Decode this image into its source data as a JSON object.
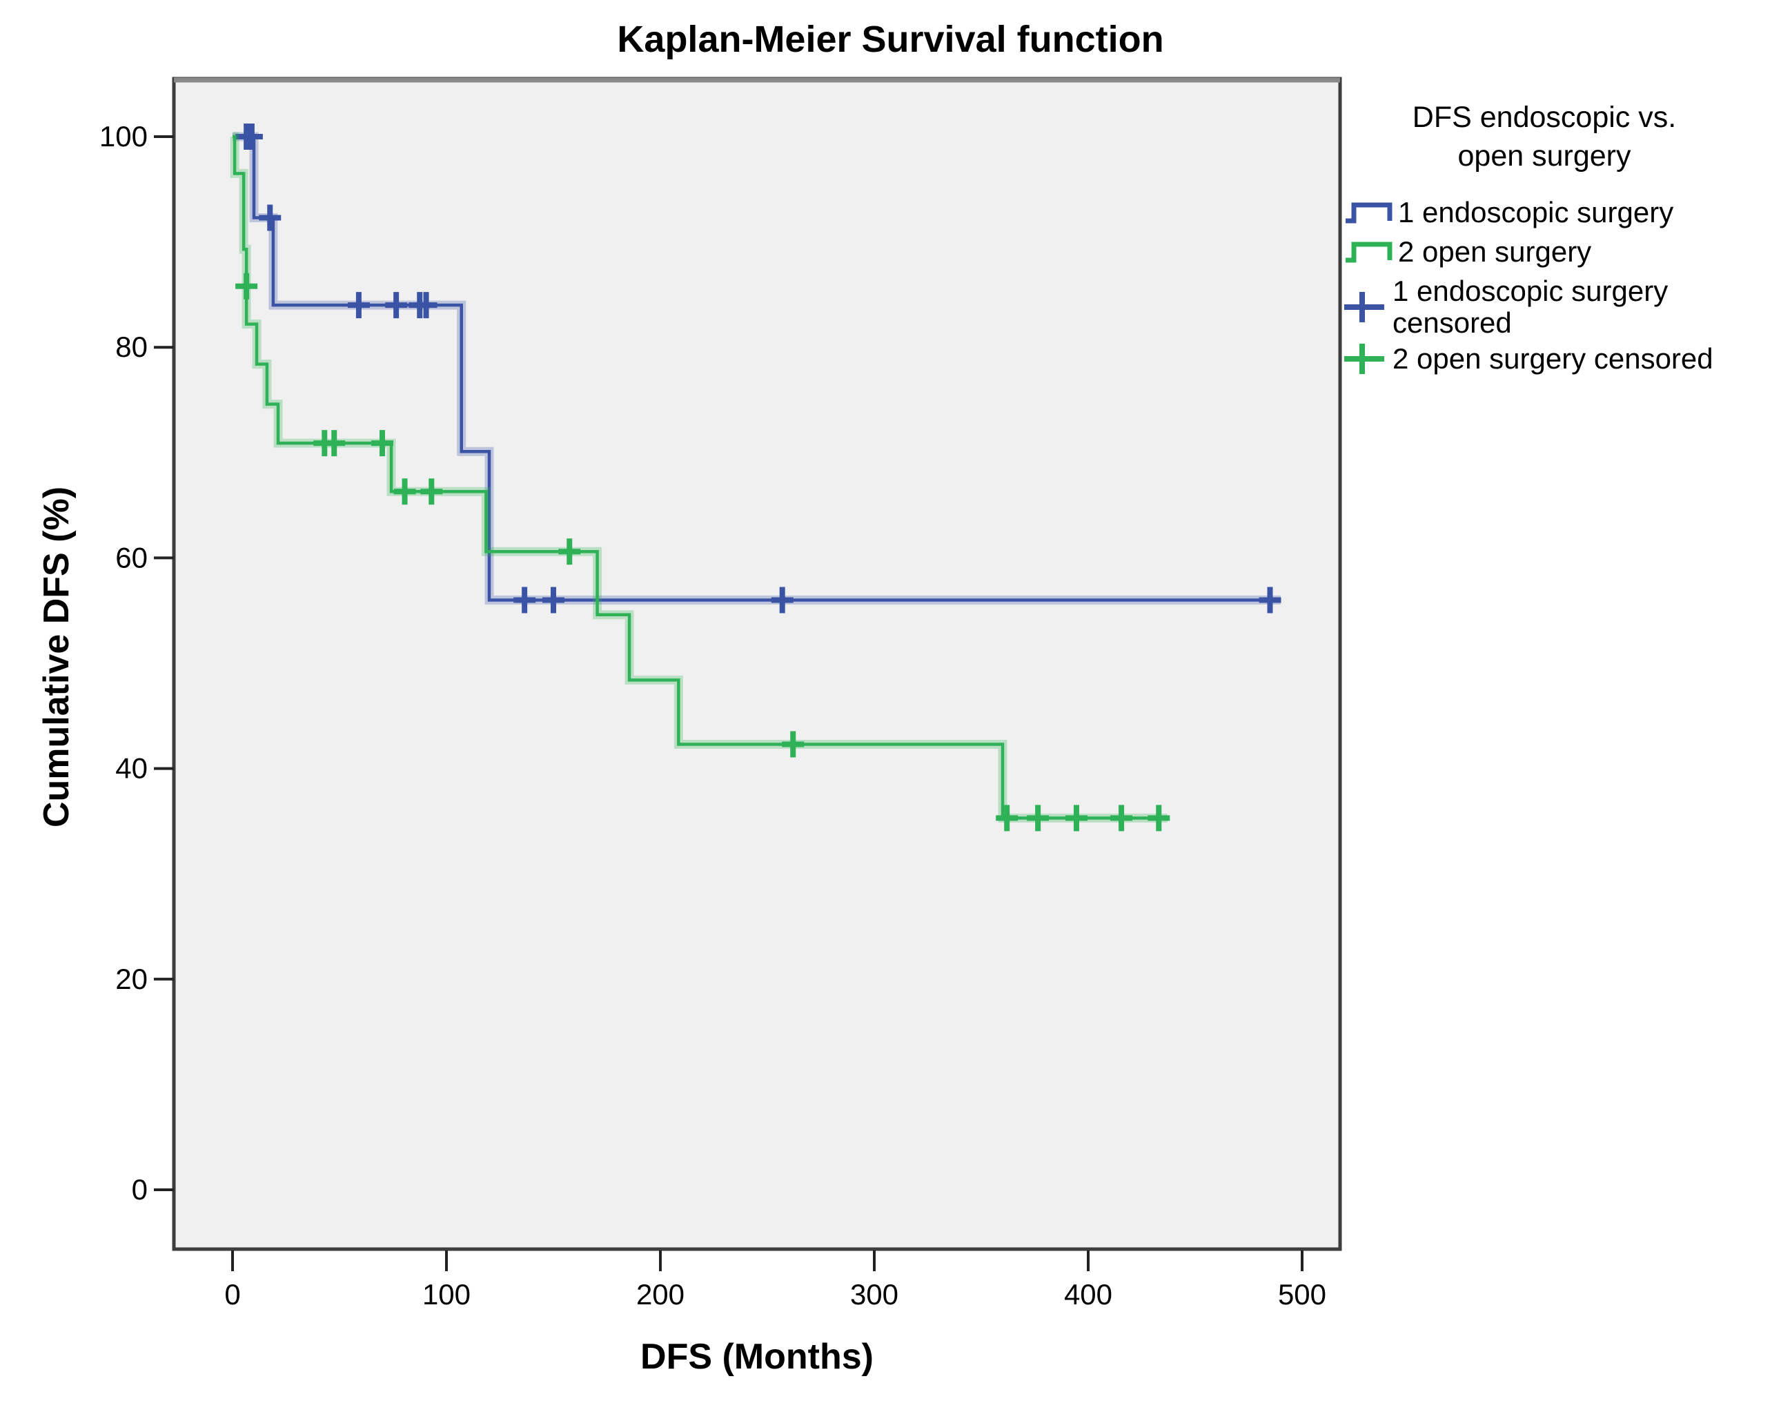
{
  "title": "Kaplan-Meier Survival function",
  "x_axis": {
    "label": "DFS (Months)",
    "ticks": [
      0,
      100,
      200,
      300,
      400,
      500
    ]
  },
  "y_axis": {
    "label": "Cumulative DFS (%)",
    "ticks": [
      0,
      20,
      40,
      60,
      80,
      100
    ]
  },
  "legend": {
    "title_line1": "DFS endoscopic vs.",
    "title_line2": "open surgery",
    "items": [
      {
        "label_lines": [
          "1 endoscopic surgery"
        ],
        "glyph": "step-line",
        "color": "#3b53a5"
      },
      {
        "label_lines": [
          "2 open surgery"
        ],
        "glyph": "step-line",
        "color": "#2fb257"
      },
      {
        "label_lines": [
          "1 endoscopic surgery",
          "censored"
        ],
        "glyph": "plus",
        "color": "#3b53a5"
      },
      {
        "label_lines": [
          "2 open surgery censored"
        ],
        "glyph": "plus",
        "color": "#2fb257"
      }
    ]
  },
  "colors": {
    "endoscopic": "#3b53a5",
    "open": "#2fb257",
    "plot_background": "#f0f0f0",
    "frame": "#3d3d3d",
    "frame_top_band": "#8a8a8a",
    "text": "#000000"
  },
  "chart_data": {
    "type": "line",
    "subtype": "kaplan-meier-step",
    "title": "Kaplan-Meier Survival function",
    "xlabel": "DFS (Months)",
    "ylabel": "Cumulative DFS (%)",
    "xlim": [
      -27,
      518
    ],
    "ylim": [
      -7,
      106
    ],
    "x_ticks": [
      0,
      100,
      200,
      300,
      400,
      500
    ],
    "y_ticks": [
      0,
      20,
      40,
      60,
      80,
      100
    ],
    "grid": false,
    "legend_position": "right",
    "series": [
      {
        "name": "1 endoscopic surgery",
        "color": "#3b53a5",
        "end_time": 490,
        "steps": [
          [
            0,
            100
          ],
          [
            10,
            92.3
          ],
          [
            19,
            84.0
          ],
          [
            107,
            70.1
          ],
          [
            120,
            56.0
          ]
        ],
        "censored": [
          [
            6.5,
            100
          ],
          [
            9,
            100
          ],
          [
            17.5,
            92.3
          ],
          [
            59,
            84.0
          ],
          [
            76.5,
            84.0
          ],
          [
            87.5,
            84.0
          ],
          [
            90.5,
            84.0
          ],
          [
            136.5,
            56.0
          ],
          [
            150,
            56.0
          ],
          [
            257,
            56.0
          ],
          [
            485,
            56.0
          ]
        ]
      },
      {
        "name": "2 open surgery",
        "color": "#2fb257",
        "end_time": 437,
        "steps": [
          [
            0,
            100
          ],
          [
            1,
            96.5
          ],
          [
            5.2,
            89.3
          ],
          [
            6.5,
            82.2
          ],
          [
            11.3,
            78.4
          ],
          [
            16.1,
            74.6
          ],
          [
            21.3,
            70.9
          ],
          [
            74.2,
            66.3
          ],
          [
            118.5,
            60.6
          ],
          [
            170.5,
            54.6
          ],
          [
            185.5,
            48.4
          ],
          [
            208.5,
            42.3
          ],
          [
            360,
            35.3
          ]
        ],
        "censored": [
          [
            6.5,
            85.8
          ],
          [
            43,
            70.9
          ],
          [
            47.5,
            70.9
          ],
          [
            70,
            70.9
          ],
          [
            80.5,
            66.3
          ],
          [
            93,
            66.3
          ],
          [
            157.5,
            60.6
          ],
          [
            262,
            42.3
          ],
          [
            362,
            35.3
          ],
          [
            376.5,
            35.3
          ],
          [
            394.5,
            35.3
          ],
          [
            415.5,
            35.3
          ],
          [
            433,
            35.3
          ]
        ]
      }
    ]
  }
}
